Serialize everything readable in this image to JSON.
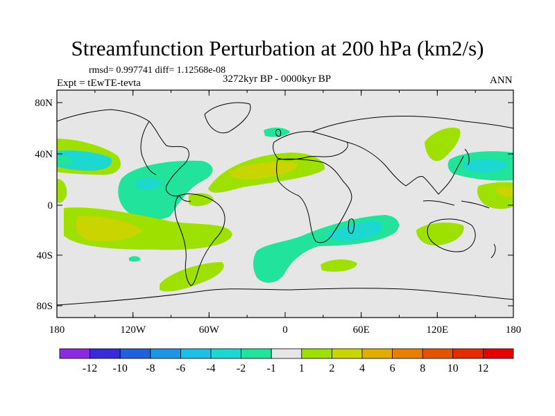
{
  "title": "Streamfunction Perturbation at 200 hPa (km2/s)",
  "stats": "rmsd= 0.997741  diff= 1.12568e-08",
  "experiment": "Expt = tEwTE-tevta",
  "period": "3272kyr BP - 0000kyr BP",
  "season": "ANN",
  "axes": {
    "lat_ticks": [
      "80N",
      "40N",
      "0",
      "40S",
      "80S"
    ],
    "lon_ticks": [
      "180",
      "120W",
      "60W",
      "0",
      "60E",
      "120E",
      "180"
    ]
  },
  "colorbar": {
    "labels": [
      "-12",
      "-10",
      "-8",
      "-6",
      "-4",
      "-2",
      "-1",
      "1",
      "2",
      "4",
      "6",
      "8",
      "10",
      "12"
    ],
    "colors": [
      "#8a2be2",
      "#3a2bd8",
      "#1f60dc",
      "#1c96e4",
      "#1cbfe6",
      "#1cd8d0",
      "#22e39c",
      "#e6e6e6",
      "#9ee000",
      "#c9d400",
      "#e0ad00",
      "#e68000",
      "#e65300",
      "#e62a00",
      "#e60000"
    ]
  },
  "field_colors": {
    "land_sea_background": "#e6e6e6",
    "pos1": "#9ee000",
    "pos2": "#c9d400",
    "neg1": "#22e39c",
    "neg2": "#1cd8d0"
  }
}
